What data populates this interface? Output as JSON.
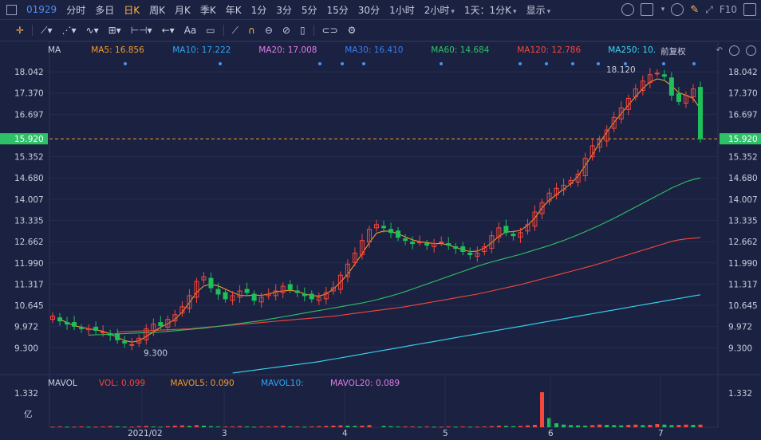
{
  "topbar": {
    "code": "01929",
    "periods": [
      "分时",
      "多日",
      "日K",
      "周K",
      "月K",
      "季K",
      "年K",
      "1分",
      "3分",
      "5分",
      "15分",
      "30分",
      "1小时",
      "2小时",
      "1天：1分K"
    ],
    "active_period": "日K",
    "display_label": "显示",
    "f10_label": "F10"
  },
  "toolbar": {
    "text_tool": "Aa"
  },
  "indicators": {
    "ma_label": "MA",
    "ma5": "MA5: 16.856",
    "ma10": "MA10: 17.222",
    "ma20": "MA20: 17.008",
    "ma30": "MA30: 16.410",
    "ma60": "MA60: 14.684",
    "ma120": "MA120: 12.786",
    "ma250": "MA250: 10.",
    "adjust_label": "前复权",
    "vol_label": "MAVOL",
    "vol": "VOL: 0.099",
    "mavol5": "MAVOL5: 0.090",
    "mavol10": "MAVOL10:",
    "mavol20": "MAVOL20: 0.089"
  },
  "colors": {
    "up": "#f5473d",
    "down": "#1fbf5b",
    "ma5": "#f59a27",
    "ma10": "#2ba6f5",
    "ma20": "#e07be9",
    "ma30": "#3a7cf2",
    "ma60": "#2ec167",
    "ma120": "#f5473d",
    "ma250": "#3ad8f2",
    "current": "#2ec167"
  },
  "chart_data": {
    "type": "candlestick",
    "price_axis_ticks": [
      18.042,
      17.37,
      16.697,
      15.352,
      14.68,
      14.007,
      13.335,
      12.662,
      11.99,
      11.317,
      10.645,
      9.972,
      9.3
    ],
    "price_axis_labels": [
      "18.042",
      "17.370",
      "16.697",
      "15.352",
      "14.680",
      "14.007",
      "13.335",
      "12.662",
      "11.990",
      "11.317",
      "10.645",
      "9.972",
      "9.300"
    ],
    "current_price": "15.920",
    "high_marker": "18.120",
    "low_marker": "9.300",
    "x_labels": [
      "2021/02",
      "3",
      "4",
      "5",
      "6",
      "7"
    ],
    "vol_axis_label": "1.332",
    "vol_unit": "亿",
    "close_series": [
      10.3,
      10.15,
      10.05,
      9.98,
      9.92,
      9.9,
      9.85,
      9.8,
      9.7,
      9.55,
      9.45,
      9.4,
      9.6,
      9.9,
      10.05,
      10.0,
      10.2,
      10.35,
      10.6,
      10.95,
      11.4,
      11.55,
      11.2,
      11.0,
      10.85,
      10.95,
      11.1,
      11.05,
      10.8,
      10.9,
      11.0,
      11.1,
      11.25,
      11.15,
      11.05,
      10.95,
      10.85,
      10.9,
      11.05,
      11.2,
      11.6,
      11.95,
      12.3,
      12.7,
      13.05,
      13.2,
      13.1,
      12.95,
      12.8,
      12.7,
      12.6,
      12.65,
      12.55,
      12.6,
      12.65,
      12.55,
      12.45,
      12.35,
      12.25,
      12.3,
      12.5,
      12.85,
      13.1,
      12.95,
      12.85,
      12.95,
      13.2,
      13.6,
      13.9,
      14.2,
      14.35,
      14.45,
      14.6,
      14.8,
      15.3,
      15.7,
      15.9,
      16.2,
      16.6,
      16.9,
      17.2,
      17.5,
      17.75,
      17.95,
      18.0,
      17.9,
      17.3,
      17.1,
      17.3,
      17.5,
      15.92
    ],
    "ma_series": {
      "MA5": [
        10.2,
        10.1,
        10.0,
        9.95,
        9.9,
        9.87,
        9.82,
        9.74,
        9.63,
        9.53,
        9.48,
        9.52,
        9.66,
        9.8,
        9.95,
        10.06,
        10.2,
        10.43,
        10.73,
        11.05,
        11.26,
        11.31,
        11.26,
        11.16,
        11.05,
        10.96,
        10.95,
        10.97,
        10.96,
        11.0,
        11.07,
        11.1,
        11.12,
        11.09,
        11.01,
        10.95,
        10.94,
        11.0,
        11.16,
        11.38,
        11.63,
        11.95,
        12.28,
        12.63,
        12.93,
        13.0,
        12.99,
        12.91,
        12.81,
        12.72,
        12.66,
        12.63,
        12.6,
        12.6,
        12.56,
        12.48,
        12.4,
        12.35,
        12.36,
        12.46,
        12.63,
        12.83,
        12.97,
        12.98,
        13.02,
        13.18,
        13.41,
        13.73,
        13.98,
        14.15,
        14.32,
        14.5,
        14.74,
        15.07,
        15.42,
        15.8,
        16.13,
        16.44,
        16.72,
        16.99,
        17.26,
        17.51,
        17.72,
        17.82,
        17.77,
        17.6,
        17.38,
        17.3,
        17.2,
        16.86
      ],
      "MA60": [
        9.7,
        9.71,
        9.72,
        9.73,
        9.74,
        9.75,
        9.76,
        9.77,
        9.78,
        9.79,
        9.8,
        9.82,
        9.84,
        9.86,
        9.88,
        9.9,
        9.92,
        9.95,
        9.98,
        10.01,
        10.04,
        10.07,
        10.1,
        10.13,
        10.16,
        10.2,
        10.24,
        10.28,
        10.32,
        10.36,
        10.4,
        10.44,
        10.48,
        10.52,
        10.56,
        10.6,
        10.64,
        10.68,
        10.72,
        10.77,
        10.82,
        10.88,
        10.94,
        11.01,
        11.08,
        11.16,
        11.24,
        11.32,
        11.4,
        11.48,
        11.56,
        11.64,
        11.72,
        11.8,
        11.88,
        11.95,
        12.02,
        12.08,
        12.14,
        12.2,
        12.26,
        12.33,
        12.4,
        12.47,
        12.54,
        12.62,
        12.7,
        12.79,
        12.88,
        12.98,
        13.08,
        13.18,
        13.29,
        13.4,
        13.52,
        13.64,
        13.76,
        13.88,
        14.0,
        14.12,
        14.24,
        14.36,
        14.46,
        14.56,
        14.63,
        14.68
      ],
      "MA120": [
        9.8,
        9.81,
        9.82,
        9.83,
        9.84,
        9.85,
        9.86,
        9.87,
        9.88,
        9.89,
        9.9,
        9.92,
        9.94,
        9.96,
        9.98,
        10.0,
        10.02,
        10.04,
        10.06,
        10.08,
        10.1,
        10.12,
        10.14,
        10.16,
        10.18,
        10.2,
        10.22,
        10.24,
        10.26,
        10.28,
        10.3,
        10.33,
        10.36,
        10.39,
        10.42,
        10.45,
        10.48,
        10.51,
        10.54,
        10.57,
        10.6,
        10.64,
        10.68,
        10.72,
        10.76,
        10.8,
        10.84,
        10.88,
        10.92,
        10.96,
        11.0,
        11.05,
        11.1,
        11.15,
        11.2,
        11.25,
        11.3,
        11.36,
        11.42,
        11.48,
        11.54,
        11.6,
        11.66,
        11.72,
        11.78,
        11.84,
        11.9,
        11.97,
        12.04,
        12.11,
        12.18,
        12.25,
        12.32,
        12.39,
        12.46,
        12.53,
        12.6,
        12.67,
        12.72,
        12.75,
        12.77,
        12.79
      ],
      "MA250": [
        8.5,
        8.53,
        8.56,
        8.59,
        8.62,
        8.65,
        8.68,
        8.71,
        8.74,
        8.77,
        8.8,
        8.83,
        8.86,
        8.9,
        8.94,
        8.98,
        9.02,
        9.06,
        9.1,
        9.14,
        9.18,
        9.22,
        9.26,
        9.3,
        9.34,
        9.38,
        9.42,
        9.46,
        9.5,
        9.54,
        9.58,
        9.62,
        9.66,
        9.7,
        9.74,
        9.78,
        9.82,
        9.86,
        9.9,
        9.94,
        9.98,
        10.02,
        10.06,
        10.1,
        10.14,
        10.18,
        10.22,
        10.26,
        10.3,
        10.34,
        10.38,
        10.42,
        10.46,
        10.5,
        10.54,
        10.58,
        10.62,
        10.66,
        10.7,
        10.74,
        10.78,
        10.82,
        10.86,
        10.9,
        10.94,
        10.98
      ]
    },
    "volume": [
      0.02,
      0.03,
      0.02,
      0.02,
      0.03,
      0.02,
      0.02,
      0.03,
      0.04,
      0.03,
      0.02,
      0.02,
      0.04,
      0.05,
      0.03,
      0.02,
      0.04,
      0.06,
      0.07,
      0.05,
      0.08,
      0.06,
      0.04,
      0.03,
      0.03,
      0.03,
      0.04,
      0.03,
      0.02,
      0.03,
      0.03,
      0.04,
      0.05,
      0.03,
      0.03,
      0.02,
      0.03,
      0.04,
      0.05,
      0.06,
      0.07,
      0.06,
      0.05,
      0.06,
      0.08,
      0.05,
      0.04,
      0.03,
      0.03,
      0.03,
      0.02,
      0.03,
      0.02,
      0.02,
      0.03,
      0.02,
      0.03,
      0.02,
      0.02,
      0.03,
      0.04,
      0.06,
      0.05,
      0.04,
      0.05,
      0.07,
      0.09,
      1.33,
      0.35,
      0.15,
      0.1,
      0.08,
      0.07,
      0.06,
      0.08,
      0.1,
      0.09,
      0.08,
      0.07,
      0.09,
      0.1,
      0.08,
      0.09,
      0.12,
      0.1,
      0.08,
      0.09,
      0.1,
      0.09,
      0.099
    ]
  }
}
